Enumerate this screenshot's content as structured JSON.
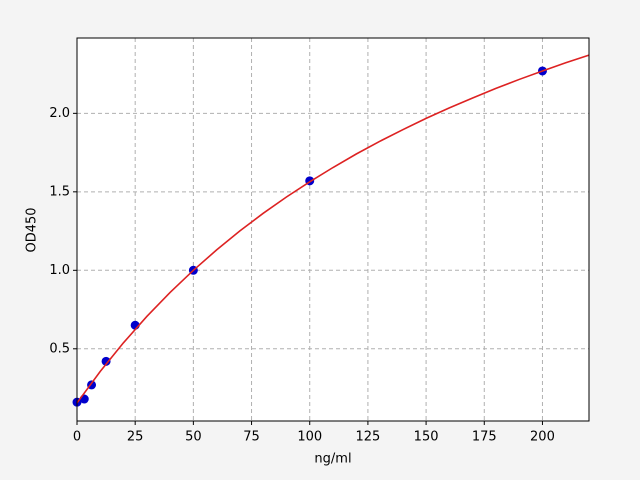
{
  "chart_data": {
    "type": "scatter",
    "x_label": "ng/ml",
    "y_label": "OD450",
    "xlim": [
      0,
      220
    ],
    "ylim": [
      0.04,
      2.48
    ],
    "xticks": [
      0,
      25,
      50,
      75,
      100,
      125,
      150,
      175,
      200
    ],
    "yticks": [
      0.5,
      {
        "value": 1.0,
        "label": "1.0"
      },
      1.5,
      {
        "value": 2.0,
        "label": "2.0"
      }
    ],
    "grid": true,
    "series": [
      {
        "type": "scatter",
        "color": "#0000cc",
        "x": [
          0,
          3.125,
          6.25,
          12.5,
          25,
          50,
          100,
          200
        ],
        "values": [
          0.16,
          0.18,
          0.27,
          0.42,
          0.65,
          1.0,
          1.57,
          2.27
        ]
      },
      {
        "type": "line",
        "color": "#dd2222",
        "x": [
          0,
          10,
          20,
          30,
          40,
          50,
          60,
          70,
          80,
          90,
          100,
          110,
          120,
          130,
          140,
          150,
          160,
          170,
          180,
          190,
          200,
          210,
          220
        ],
        "values": [
          0.155,
          0.356,
          0.539,
          0.706,
          0.859,
          1.0,
          1.13,
          1.251,
          1.363,
          1.467,
          1.564,
          1.655,
          1.741,
          1.821,
          1.896,
          1.968,
          2.035,
          2.098,
          2.159,
          2.216,
          2.27,
          2.322,
          2.371
        ]
      }
    ]
  }
}
